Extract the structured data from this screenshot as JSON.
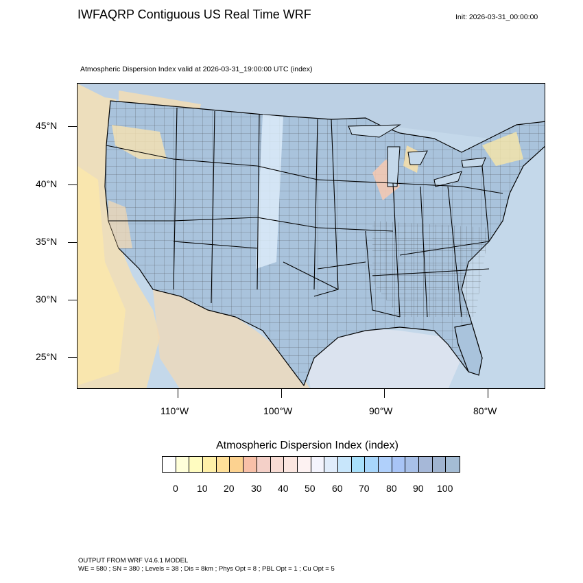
{
  "header": {
    "title": "IWFAQRP Contiguous US Real Time WRF",
    "init": "Init: 2026-03-31_00:00:00",
    "subtitle": "Atmospheric Dispersion Index valid at 2026-03-31_19:00:00 UTC   (index)"
  },
  "map": {
    "lat_labels": [
      "45°N",
      "40°N",
      "35°N",
      "30°N",
      "25°N"
    ],
    "lon_labels": [
      "110°W",
      "100°W",
      "90°W",
      "80°W"
    ],
    "ocean_color": "#c9dcea",
    "land_base_color": "#a9c3dc"
  },
  "colorbar": {
    "title": "Atmospheric Dispersion Index  (index)",
    "tick_labels": [
      "0",
      "10",
      "20",
      "30",
      "40",
      "50",
      "60",
      "70",
      "80",
      "90",
      "100"
    ],
    "colors": [
      "#ffffff",
      "#ffffd9",
      "#fffcc0",
      "#fff0a8",
      "#ffe099",
      "#fcd290",
      "#f8c0a8",
      "#f4d0c8",
      "#f8dcd4",
      "#fbe6e0",
      "#fdf2f2",
      "#f4f4fd",
      "#e0ecfb",
      "#c8e6fb",
      "#a8e0fb",
      "#a8d6fb",
      "#b0d0fb",
      "#a8c4f6",
      "#a8c0e8",
      "#a6b8d8",
      "#a0b4d0",
      "#a4bcd4"
    ]
  },
  "footer": {
    "line1": "OUTPUT FROM WRF V4.6.1 MODEL",
    "line2": "WE = 580 ; SN = 380 ; Levels = 38 ; Dis = 8km ; Phys Opt = 8 ; PBL Opt = 1 ; Cu Opt = 5"
  }
}
